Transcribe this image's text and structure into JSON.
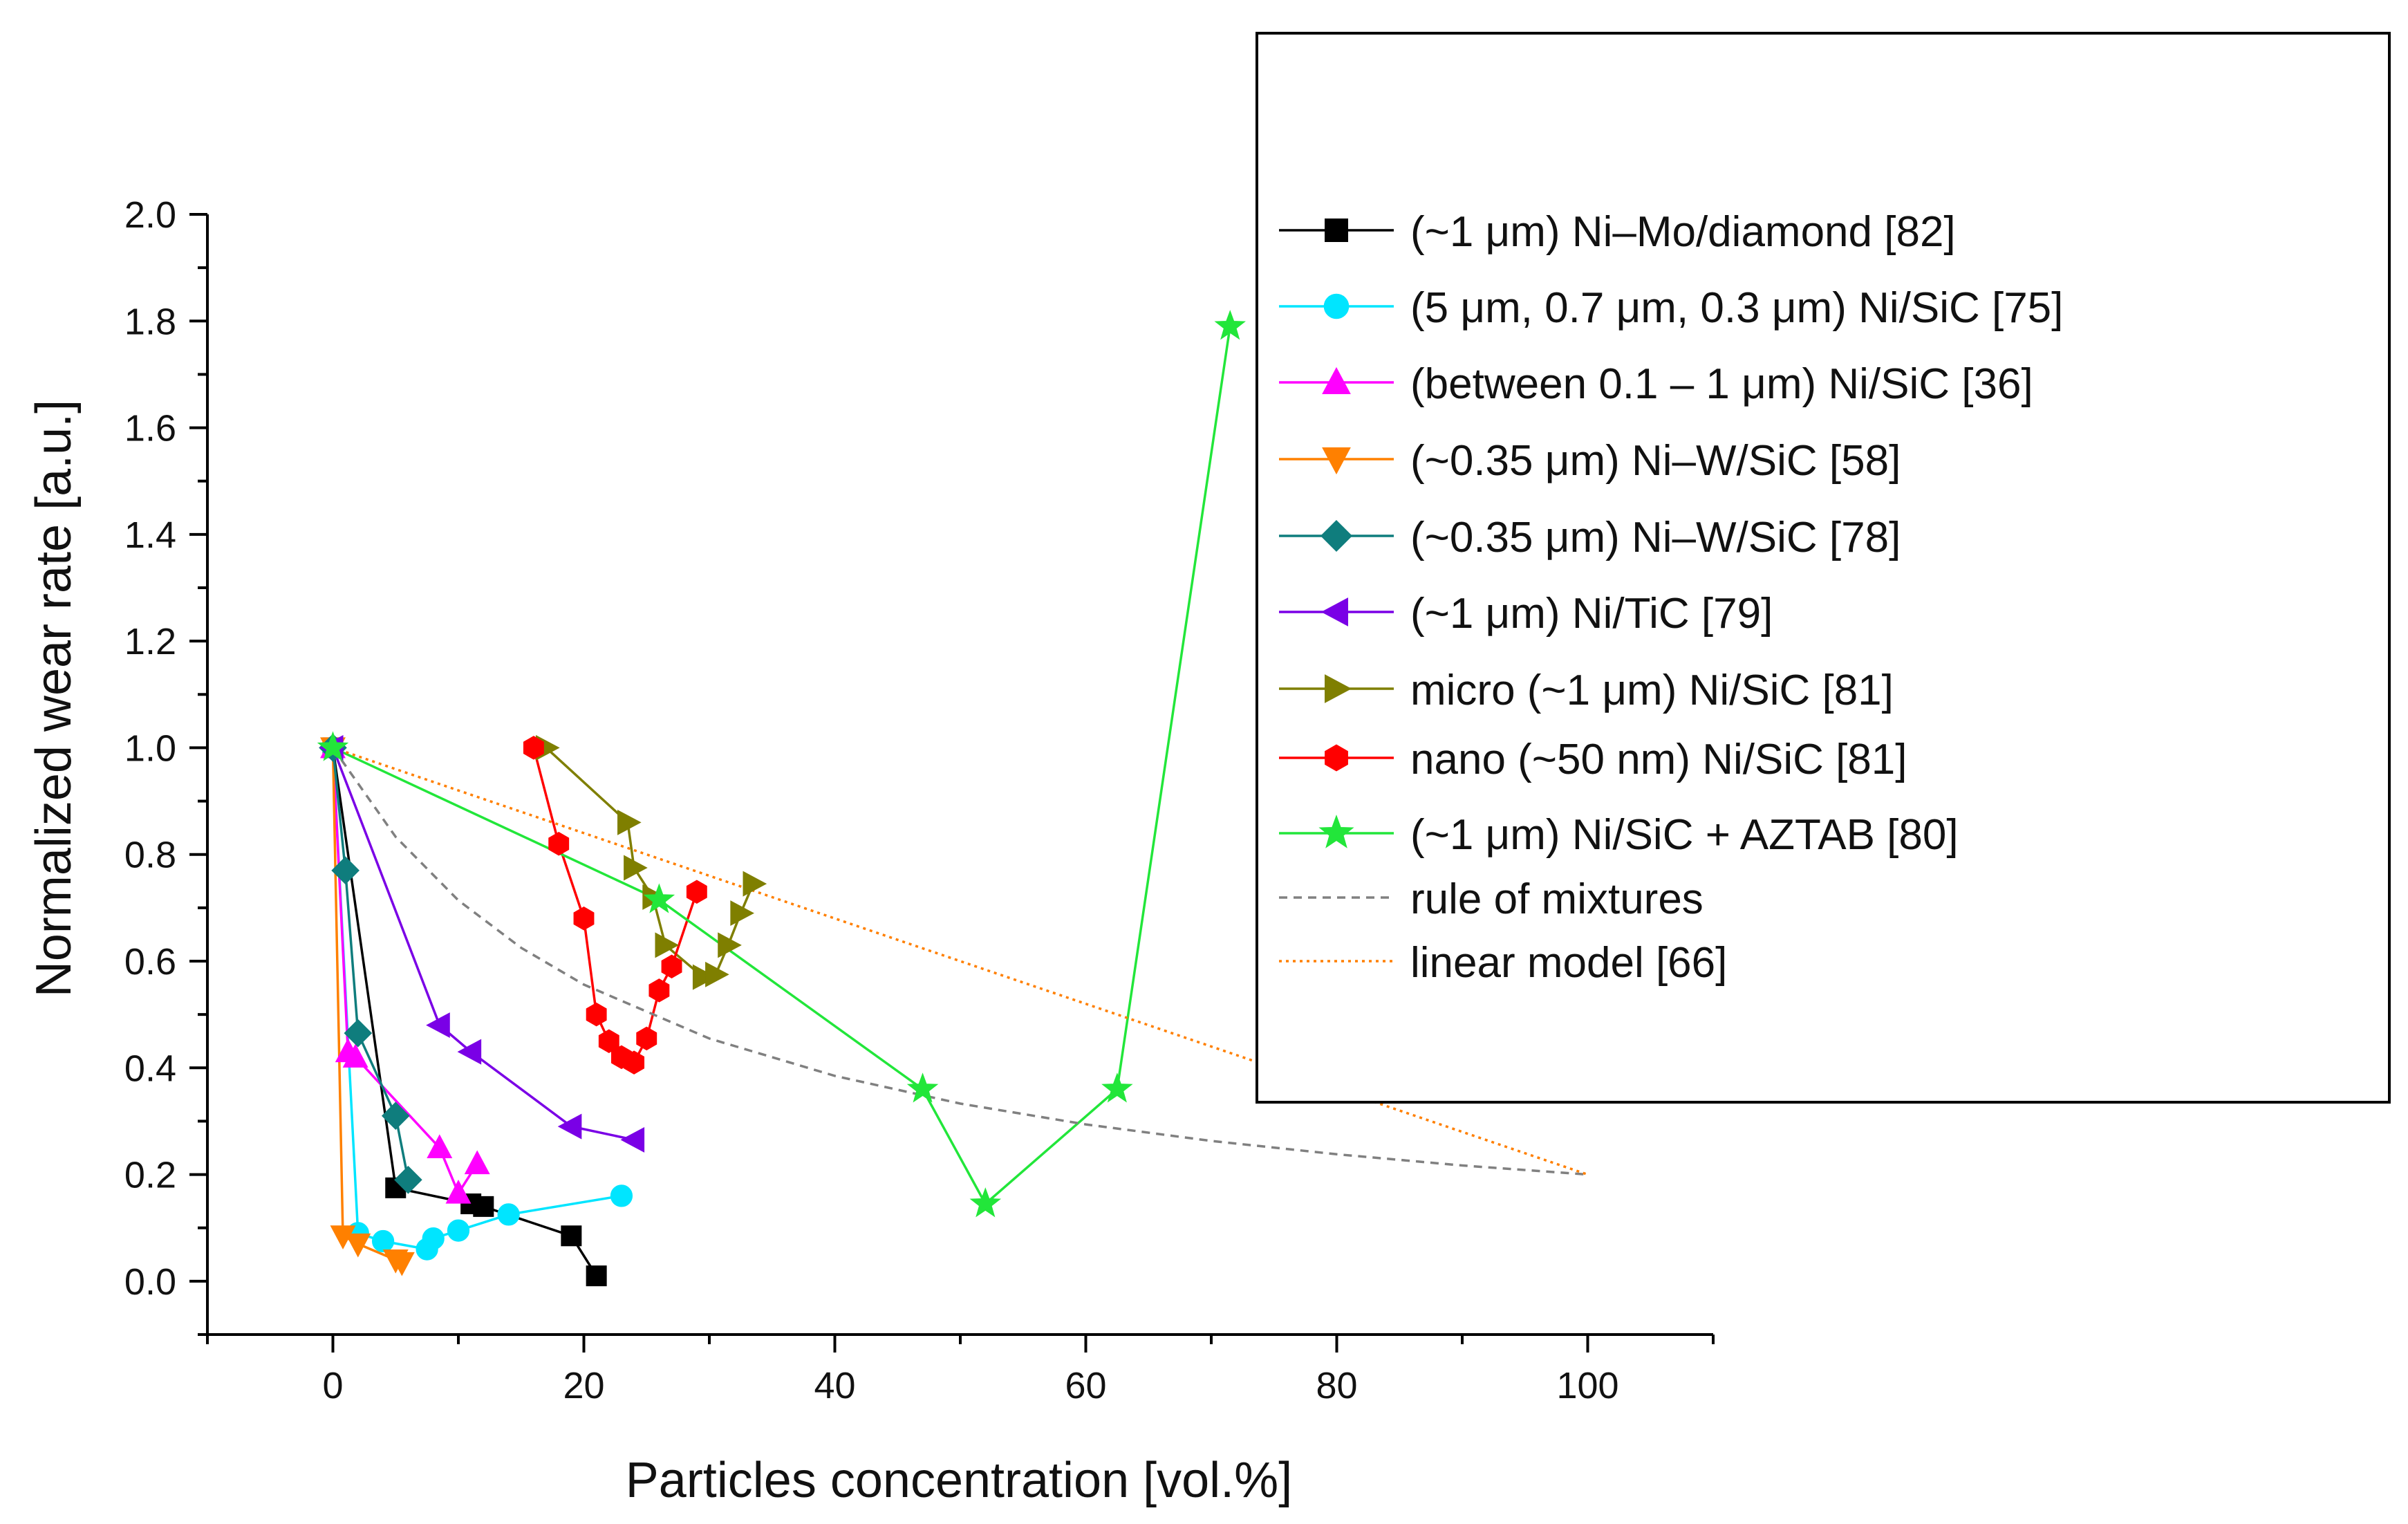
{
  "chart_data": {
    "type": "scatter",
    "title": "",
    "xlabel": "Particles concentration [vol.%]",
    "ylabel": "Normalized wear rate [a.u.]",
    "xlim": [
      -10,
      110
    ],
    "ylim": [
      -0.1,
      2.0
    ],
    "xticks": [
      0,
      20,
      40,
      60,
      80,
      100
    ],
    "xtick_labels": [
      "0",
      "20",
      "40",
      "60",
      "80",
      "100"
    ],
    "yticks": [
      0.0,
      0.2,
      0.4,
      0.6,
      0.8,
      1.0,
      1.2,
      1.4,
      1.6,
      1.8,
      2.0
    ],
    "ytick_labels": [
      "0.0",
      "0.2",
      "0.4",
      "0.6",
      "0.8",
      "1.0",
      "1.2",
      "1.4",
      "1.6",
      "1.8",
      "2.0"
    ],
    "grid": false,
    "legend_position": "top-right",
    "series": [
      {
        "name": "(~1 μm) Ni–Mo/diamond [82]",
        "color": "#000000",
        "marker": "square",
        "x": [
          0,
          5,
          11,
          12,
          19,
          21
        ],
        "y": [
          1.0,
          0.175,
          0.145,
          0.14,
          0.085,
          0.01
        ]
      },
      {
        "name": "(5 μm, 0.7 μm, 0.3 μm) Ni/SiC [75]",
        "color": "#00e5ff",
        "marker": "circle",
        "x": [
          0,
          2,
          4,
          7.5,
          8,
          10,
          14,
          23
        ],
        "y": [
          1.0,
          0.09,
          0.075,
          0.06,
          0.08,
          0.095,
          0.125,
          0.16
        ]
      },
      {
        "name": "(between 0.1 – 1 μm) Ni/SiC [36]",
        "color": "#ff00ff",
        "marker": "triangle-up",
        "x": [
          0,
          1.2,
          1.8,
          8.5,
          10,
          11.5
        ],
        "y": [
          1.0,
          0.43,
          0.42,
          0.25,
          0.165,
          0.22
        ]
      },
      {
        "name": "(~0.35 μm) Ni–W/SiC [58]",
        "color": "#ff8000",
        "marker": "triangle-down",
        "x": [
          0,
          0.8,
          2,
          5,
          5.5
        ],
        "y": [
          1.0,
          0.085,
          0.07,
          0.04,
          0.035
        ]
      },
      {
        "name": "(~0.35 μm) Ni–W/SiC [78]",
        "color": "#0f7d7d",
        "marker": "diamond",
        "x": [
          0,
          1,
          2,
          5,
          6
        ],
        "y": [
          1.0,
          0.77,
          0.465,
          0.31,
          0.19
        ]
      },
      {
        "name": "(~1 μm) Ni/TiC [79]",
        "color": "#7a00e6",
        "marker": "triangle-left",
        "x": [
          0,
          8.5,
          11,
          19,
          24
        ],
        "y": [
          1.0,
          0.48,
          0.43,
          0.29,
          0.265
        ]
      },
      {
        "name": "micro (~1 μm) Ni/SiC [81]",
        "color": "#7f7f00",
        "marker": "triangle-right",
        "x": [
          17,
          23.5,
          24,
          25.5,
          26.5,
          29.5,
          30.5,
          31.5,
          32.5,
          33.5
        ],
        "y": [
          1.0,
          0.86,
          0.775,
          0.72,
          0.63,
          0.57,
          0.575,
          0.63,
          0.69,
          0.745
        ]
      },
      {
        "name": "nano (~50 nm) Ni/SiC [81]",
        "color": "#ff0000",
        "marker": "hexagon",
        "x": [
          16,
          18,
          20,
          21,
          22,
          23,
          24,
          25,
          26,
          27,
          29
        ],
        "y": [
          1.0,
          0.82,
          0.68,
          0.5,
          0.45,
          0.42,
          0.41,
          0.455,
          0.545,
          0.59,
          0.73
        ]
      },
      {
        "name": "(~1 μm) Ni/SiC + AZTAB [80]",
        "color": "#22e63a",
        "marker": "star",
        "x": [
          0,
          26,
          47,
          52,
          62.5,
          71.5
        ],
        "y": [
          1.0,
          0.715,
          0.36,
          0.145,
          0.36,
          1.79
        ]
      },
      {
        "name": "rule of mixtures",
        "color": "#808080",
        "marker": "none",
        "dash": "dashed",
        "x": [
          0,
          5,
          10,
          15,
          20,
          30,
          40,
          50,
          60,
          70,
          80,
          90,
          100
        ],
        "y": [
          1.0,
          0.833,
          0.714,
          0.625,
          0.556,
          0.455,
          0.385,
          0.333,
          0.294,
          0.263,
          0.238,
          0.217,
          0.2
        ]
      },
      {
        "name": "linear model [66]",
        "color": "#ff7f00",
        "marker": "none",
        "dash": "dotted",
        "x": [
          0,
          100
        ],
        "y": [
          1.0,
          0.2
        ]
      }
    ]
  }
}
